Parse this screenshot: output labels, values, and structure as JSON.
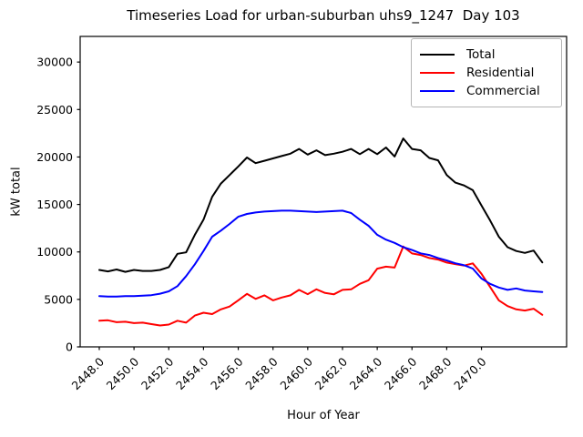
{
  "chart_data": {
    "type": "line",
    "title": "Timeseries Load for urban-suburban uhs9_1247  Day 103",
    "xlabel": "Hour of Year",
    "ylabel": "kW total",
    "grid": false,
    "legend_position": "upper right",
    "xlim": [
      2446.9,
      2474.9
    ],
    "ylim": [
      0,
      32700
    ],
    "xticks": [
      2448,
      2450,
      2452,
      2454,
      2456,
      2458,
      2460,
      2462,
      2464,
      2466,
      2468,
      2470
    ],
    "xtick_labels": [
      "2448.0",
      "2450.0",
      "2452.0",
      "2454.0",
      "2456.0",
      "2458.0",
      "2460.0",
      "2462.0",
      "2464.0",
      "2466.0",
      "2468.0",
      "2470.0"
    ],
    "yticks": [
      0,
      5000,
      10000,
      15000,
      20000,
      25000,
      30000
    ],
    "ytick_labels": [
      "0",
      "5000",
      "10000",
      "15000",
      "20000",
      "25000",
      "30000"
    ],
    "x": [
      2448.0,
      2448.5,
      2449.0,
      2449.5,
      2450.0,
      2450.5,
      2451.0,
      2451.5,
      2452.0,
      2452.5,
      2453.0,
      2453.5,
      2454.0,
      2454.5,
      2455.0,
      2455.5,
      2456.0,
      2456.5,
      2457.0,
      2457.5,
      2458.0,
      2458.5,
      2459.0,
      2459.5,
      2460.0,
      2460.5,
      2461.0,
      2461.5,
      2462.0,
      2462.5,
      2463.0,
      2463.5,
      2464.0,
      2464.5,
      2465.0,
      2465.5,
      2466.0,
      2466.5,
      2467.0,
      2467.5,
      2468.0,
      2468.5,
      2469.0,
      2469.5,
      2470.0,
      2470.5,
      2471.0,
      2471.5,
      2472.0,
      2472.5,
      2473.0,
      2473.5
    ],
    "series": [
      {
        "name": "Total",
        "color": "#000000",
        "values": [
          8100,
          7950,
          8150,
          7900,
          8100,
          8000,
          8000,
          8100,
          8400,
          9800,
          9950,
          11800,
          13400,
          15800,
          17200,
          18100,
          19000,
          19950,
          19350,
          19600,
          19850,
          20100,
          20350,
          20850,
          20250,
          20700,
          20200,
          20350,
          20550,
          20850,
          20300,
          20850,
          20300,
          21000,
          20050,
          21950,
          20850,
          20700,
          19900,
          19650,
          18100,
          17300,
          17000,
          16500,
          14900,
          13300,
          11600,
          10500,
          10100,
          9900,
          10150,
          8900
        ]
      },
      {
        "name": "Residential",
        "color": "#ff0000",
        "values": [
          2750,
          2800,
          2600,
          2650,
          2500,
          2550,
          2400,
          2250,
          2350,
          2750,
          2550,
          3300,
          3600,
          3450,
          3950,
          4250,
          4900,
          5580,
          5050,
          5430,
          4900,
          5200,
          5430,
          6000,
          5550,
          6060,
          5680,
          5530,
          6000,
          6060,
          6640,
          7020,
          8240,
          8450,
          8350,
          10570,
          9840,
          9680,
          9360,
          9200,
          8880,
          8720,
          8560,
          8790,
          7700,
          6300,
          4900,
          4300,
          3950,
          3830,
          4020,
          3380
        ]
      },
      {
        "name": "Commercial",
        "color": "#0000ff",
        "values": [
          5350,
          5300,
          5300,
          5350,
          5350,
          5400,
          5450,
          5600,
          5850,
          6400,
          7450,
          8700,
          10100,
          11600,
          12250,
          12950,
          13700,
          14000,
          14150,
          14250,
          14300,
          14350,
          14350,
          14300,
          14250,
          14200,
          14250,
          14300,
          14350,
          14100,
          13400,
          12750,
          11800,
          11300,
          10950,
          10500,
          10200,
          9850,
          9680,
          9360,
          9100,
          8800,
          8600,
          8250,
          7200,
          6640,
          6250,
          6000,
          6160,
          5940,
          5850,
          5780
        ]
      }
    ]
  }
}
